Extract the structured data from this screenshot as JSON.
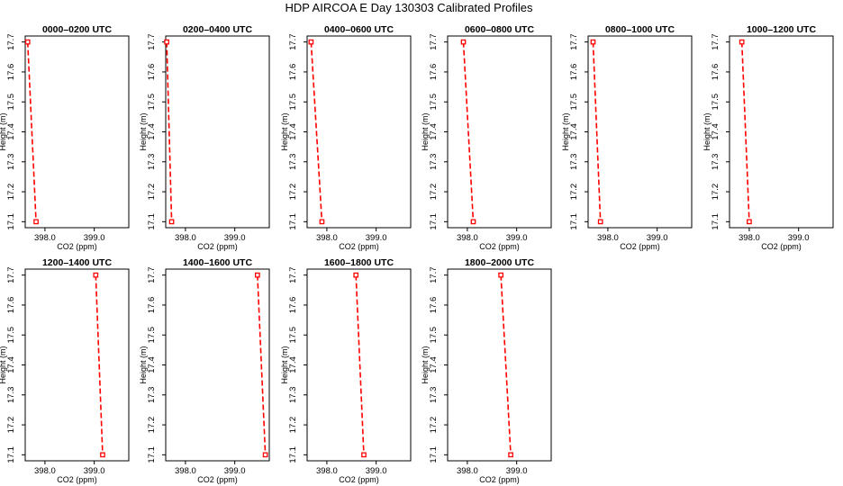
{
  "page_title": "HDP AIRCOA E  Day 130303  Calibrated Profiles",
  "chart_data": [
    {
      "type": "line",
      "title": "0000–0200 UTC",
      "xlabel": "CO2 (ppm)",
      "ylabel": "Height (m)",
      "xlim": [
        397.6,
        399.7
      ],
      "ylim": [
        17.08,
        17.72
      ],
      "xticks": [
        "398.0",
        "399.0"
      ],
      "yticks": [
        "17.1",
        "17.2",
        "17.3",
        "17.4",
        "17.5",
        "17.6",
        "17.7"
      ],
      "series": [
        {
          "color": "#ff0000",
          "points": [
            {
              "x": 397.65,
              "y": 17.7
            },
            {
              "x": 397.82,
              "y": 17.1
            }
          ]
        }
      ]
    },
    {
      "type": "line",
      "title": "0200–0400 UTC",
      "xlabel": "CO2 (ppm)",
      "ylabel": "Height (m)",
      "xlim": [
        397.6,
        399.7
      ],
      "ylim": [
        17.08,
        17.72
      ],
      "xticks": [
        "398.0",
        "399.0"
      ],
      "yticks": [
        "17.1",
        "17.2",
        "17.3",
        "17.4",
        "17.5",
        "17.6",
        "17.7"
      ],
      "series": [
        {
          "color": "#ff0000",
          "points": [
            {
              "x": 397.62,
              "y": 17.7
            },
            {
              "x": 397.72,
              "y": 17.1
            }
          ]
        }
      ]
    },
    {
      "type": "line",
      "title": "0400–0600 UTC",
      "xlabel": "CO2 (ppm)",
      "ylabel": "Height (m)",
      "xlim": [
        397.6,
        399.7
      ],
      "ylim": [
        17.08,
        17.72
      ],
      "xticks": [
        "398.0",
        "399.0"
      ],
      "yticks": [
        "17.1",
        "17.2",
        "17.3",
        "17.4",
        "17.5",
        "17.6",
        "17.7"
      ],
      "series": [
        {
          "color": "#ff0000",
          "points": [
            {
              "x": 397.68,
              "y": 17.7
            },
            {
              "x": 397.9,
              "y": 17.1
            }
          ]
        }
      ]
    },
    {
      "type": "line",
      "title": "0600–0800 UTC",
      "xlabel": "CO2 (ppm)",
      "ylabel": "Height (m)",
      "xlim": [
        397.6,
        399.7
      ],
      "ylim": [
        17.08,
        17.72
      ],
      "xticks": [
        "398.0",
        "399.0"
      ],
      "yticks": [
        "17.1",
        "17.2",
        "17.3",
        "17.4",
        "17.5",
        "17.6",
        "17.7"
      ],
      "series": [
        {
          "color": "#ff0000",
          "points": [
            {
              "x": 397.92,
              "y": 17.7
            },
            {
              "x": 398.12,
              "y": 17.1
            }
          ]
        }
      ]
    },
    {
      "type": "line",
      "title": "0800–1000 UTC",
      "xlabel": "CO2 (ppm)",
      "ylabel": "Height (m)",
      "xlim": [
        397.6,
        399.7
      ],
      "ylim": [
        17.08,
        17.72
      ],
      "xticks": [
        "398.0",
        "399.0"
      ],
      "yticks": [
        "17.1",
        "17.2",
        "17.3",
        "17.4",
        "17.5",
        "17.6",
        "17.7"
      ],
      "series": [
        {
          "color": "#ff0000",
          "points": [
            {
              "x": 397.7,
              "y": 17.7
            },
            {
              "x": 397.85,
              "y": 17.1
            }
          ]
        }
      ]
    },
    {
      "type": "line",
      "title": "1000–1200 UTC",
      "xlabel": "CO2 (ppm)",
      "ylabel": "Height (m)",
      "xlim": [
        397.6,
        399.7
      ],
      "ylim": [
        17.08,
        17.72
      ],
      "xticks": [
        "398.0",
        "399.0"
      ],
      "yticks": [
        "17.1",
        "17.2",
        "17.3",
        "17.4",
        "17.5",
        "17.6",
        "17.7"
      ],
      "series": [
        {
          "color": "#ff0000",
          "points": [
            {
              "x": 397.85,
              "y": 17.7
            },
            {
              "x": 398.0,
              "y": 17.1
            }
          ]
        }
      ]
    },
    {
      "type": "line",
      "title": "1200–1400 UTC",
      "xlabel": "CO2 (ppm)",
      "ylabel": "Height (m)",
      "xlim": [
        397.6,
        399.7
      ],
      "ylim": [
        17.08,
        17.72
      ],
      "xticks": [
        "398.0",
        "399.0"
      ],
      "yticks": [
        "17.1",
        "17.2",
        "17.3",
        "17.4",
        "17.5",
        "17.6",
        "17.7"
      ],
      "series": [
        {
          "color": "#ff0000",
          "points": [
            {
              "x": 399.03,
              "y": 17.7
            },
            {
              "x": 399.17,
              "y": 17.1
            }
          ]
        }
      ]
    },
    {
      "type": "line",
      "title": "1400–1600 UTC",
      "xlabel": "CO2 (ppm)",
      "ylabel": "Height (m)",
      "xlim": [
        397.6,
        399.7
      ],
      "ylim": [
        17.08,
        17.72
      ],
      "xticks": [
        "398.0",
        "399.0"
      ],
      "yticks": [
        "17.1",
        "17.2",
        "17.3",
        "17.4",
        "17.5",
        "17.6",
        "17.7"
      ],
      "series": [
        {
          "color": "#ff0000",
          "points": [
            {
              "x": 399.46,
              "y": 17.7
            },
            {
              "x": 399.62,
              "y": 17.1
            }
          ]
        }
      ]
    },
    {
      "type": "line",
      "title": "1600–1800 UTC",
      "xlabel": "CO2 (ppm)",
      "ylabel": "Height (m)",
      "xlim": [
        397.6,
        399.7
      ],
      "ylim": [
        17.08,
        17.72
      ],
      "xticks": [
        "398.0",
        "399.0"
      ],
      "yticks": [
        "17.1",
        "17.2",
        "17.3",
        "17.4",
        "17.5",
        "17.6",
        "17.7"
      ],
      "series": [
        {
          "color": "#ff0000",
          "points": [
            {
              "x": 398.59,
              "y": 17.7
            },
            {
              "x": 398.75,
              "y": 17.1
            }
          ]
        }
      ]
    },
    {
      "type": "line",
      "title": "1800–2000 UTC",
      "xlabel": "CO2 (ppm)",
      "ylabel": "Height (m)",
      "xlim": [
        397.6,
        399.7
      ],
      "ylim": [
        17.08,
        17.72
      ],
      "xticks": [
        "398.0",
        "399.0"
      ],
      "yticks": [
        "17.1",
        "17.2",
        "17.3",
        "17.4",
        "17.5",
        "17.6",
        "17.7"
      ],
      "series": [
        {
          "color": "#ff0000",
          "points": [
            {
              "x": 398.68,
              "y": 17.7
            },
            {
              "x": 398.88,
              "y": 17.1
            }
          ]
        }
      ]
    }
  ]
}
